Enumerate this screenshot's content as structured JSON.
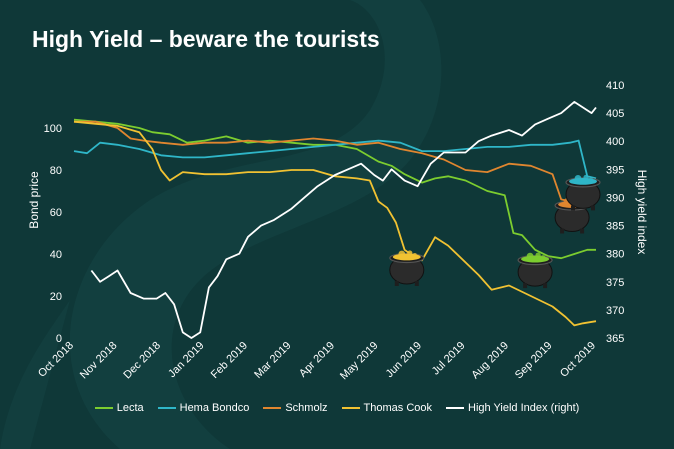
{
  "title": "High Yield – beware the tourists",
  "colors": {
    "background": "#0f3838",
    "Lecta": "#7ccd2f",
    "Hema Bondco": "#2fb6c8",
    "Schmolz": "#e0862f",
    "Thomas Cook": "#f1c232",
    "High Yield Index (right)": "#ffffff"
  },
  "chart_data": {
    "type": "line",
    "title": "High Yield – beware the tourists",
    "ylabel": "Bond price",
    "y2label": "High yield index",
    "ylim": [
      0,
      110
    ],
    "y2lim": [
      365,
      410
    ],
    "yticks": [
      0,
      20,
      40,
      60,
      80,
      100
    ],
    "y2ticks": [
      365,
      370,
      375,
      380,
      385,
      390,
      395,
      400,
      405,
      410
    ],
    "xlim": [
      0,
      12
    ],
    "xticks": [
      "Oct 2018",
      "Nov 2018",
      "Dec 2018",
      "Jan 2019",
      "Feb 2019",
      "Mar 2019",
      "Apr 2019",
      "May 2019",
      "Jun 2019",
      "Jul 2019",
      "Aug 2019",
      "Sep 2019",
      "Oct 2019"
    ],
    "series": [
      {
        "name": "Lecta",
        "axis": "left",
        "x": [
          0,
          0.5,
          1.0,
          1.5,
          1.8,
          2.2,
          2.6,
          3.0,
          3.5,
          4.0,
          4.5,
          5.0,
          5.5,
          6.0,
          6.5,
          7.0,
          7.3,
          7.6,
          8.0,
          8.3,
          8.6,
          9.0,
          9.5,
          9.9,
          10.1,
          10.3,
          10.6,
          10.9,
          11.2,
          11.5,
          11.8,
          12.0
        ],
        "y": [
          104,
          103,
          102,
          100,
          98,
          97,
          93,
          94,
          96,
          93,
          94,
          93,
          92,
          92,
          90,
          84,
          82,
          78,
          74,
          76,
          77,
          75,
          70,
          68,
          50,
          49,
          42,
          39,
          38,
          40,
          42,
          42
        ]
      },
      {
        "name": "Hema Bondco",
        "axis": "left",
        "x": [
          0,
          0.3,
          0.6,
          1.0,
          1.5,
          2.0,
          2.5,
          3.0,
          3.5,
          4.0,
          4.5,
          5.0,
          5.5,
          6.0,
          6.5,
          7.0,
          7.5,
          8.0,
          8.5,
          9.0,
          9.5,
          10.0,
          10.5,
          11.0,
          11.4,
          11.6,
          11.8,
          12.0
        ],
        "y": [
          89,
          88,
          93,
          92,
          90,
          87,
          86,
          86,
          87,
          88,
          89,
          90,
          91,
          92,
          93,
          94,
          93,
          89,
          89,
          90,
          91,
          91,
          92,
          92,
          93,
          94,
          77,
          76
        ]
      },
      {
        "name": "Schmolz",
        "axis": "left",
        "x": [
          0,
          0.5,
          1.0,
          1.3,
          1.6,
          2.0,
          2.5,
          3.0,
          3.5,
          4.0,
          4.5,
          5.0,
          5.5,
          6.0,
          6.5,
          7.0,
          7.5,
          8.0,
          8.5,
          9.0,
          9.5,
          10.0,
          10.5,
          11.0,
          11.2,
          11.4,
          11.6,
          11.8,
          12.0
        ],
        "y": [
          103,
          103,
          100,
          95,
          94,
          93,
          92,
          93,
          93,
          94,
          93,
          94,
          95,
          94,
          92,
          93,
          90,
          88,
          85,
          80,
          79,
          83,
          82,
          78,
          66,
          65,
          70,
          68,
          67
        ]
      },
      {
        "name": "Thomas Cook",
        "axis": "left",
        "x": [
          0,
          0.5,
          1.0,
          1.5,
          1.8,
          2.0,
          2.2,
          2.5,
          3.0,
          3.5,
          4.0,
          4.5,
          5.0,
          5.5,
          6.0,
          6.5,
          6.8,
          7.0,
          7.2,
          7.4,
          7.6,
          7.8,
          8.0,
          8.3,
          8.6,
          9.0,
          9.3,
          9.6,
          10.0,
          10.5,
          11.0,
          11.3,
          11.5,
          11.7,
          12.0
        ],
        "y": [
          103,
          102,
          101,
          98,
          90,
          80,
          75,
          79,
          78,
          78,
          79,
          79,
          80,
          80,
          77,
          76,
          75,
          65,
          62,
          55,
          42,
          39,
          37,
          48,
          44,
          36,
          30,
          23,
          25,
          20,
          15,
          10,
          6,
          7,
          8
        ]
      },
      {
        "name": "High Yield Index (right)",
        "axis": "right",
        "x": [
          0.4,
          0.6,
          0.8,
          1.0,
          1.3,
          1.6,
          1.9,
          2.1,
          2.3,
          2.5,
          2.7,
          2.9,
          3.1,
          3.3,
          3.5,
          3.8,
          4.0,
          4.3,
          4.6,
          5.0,
          5.3,
          5.6,
          6.0,
          6.3,
          6.6,
          6.9,
          7.1,
          7.3,
          7.6,
          7.9,
          8.2,
          8.5,
          8.8,
          9.0,
          9.3,
          9.6,
          10.0,
          10.3,
          10.6,
          10.9,
          11.2,
          11.5,
          11.7,
          11.9,
          12.0
        ],
        "y": [
          377,
          375,
          376,
          377,
          373,
          372,
          372,
          373,
          371,
          366,
          365,
          366,
          374,
          376,
          379,
          380,
          383,
          385,
          386,
          388,
          390,
          392,
          394,
          395,
          396,
          394,
          393,
          395,
          393,
          392,
          396,
          398,
          398,
          398,
          400,
          401,
          402,
          401,
          403,
          404,
          405,
          407,
          406,
          405,
          406
        ]
      }
    ],
    "legend": [
      "Lecta",
      "Hema Bondco",
      "Schmolz",
      "Thomas Cook",
      "High Yield Index (right)"
    ],
    "legend_position": "bottom",
    "grid": false,
    "annotations": [
      {
        "type": "cauldron",
        "series": "Thomas Cook",
        "x": 7.65,
        "y": 40
      },
      {
        "type": "cauldron",
        "series": "Lecta",
        "x": 10.6,
        "y": 39
      },
      {
        "type": "cauldron",
        "series": "Schmolz",
        "x": 11.45,
        "y": 65
      },
      {
        "type": "cauldron",
        "series": "Hema Bondco",
        "x": 11.7,
        "y": 76
      }
    ]
  }
}
